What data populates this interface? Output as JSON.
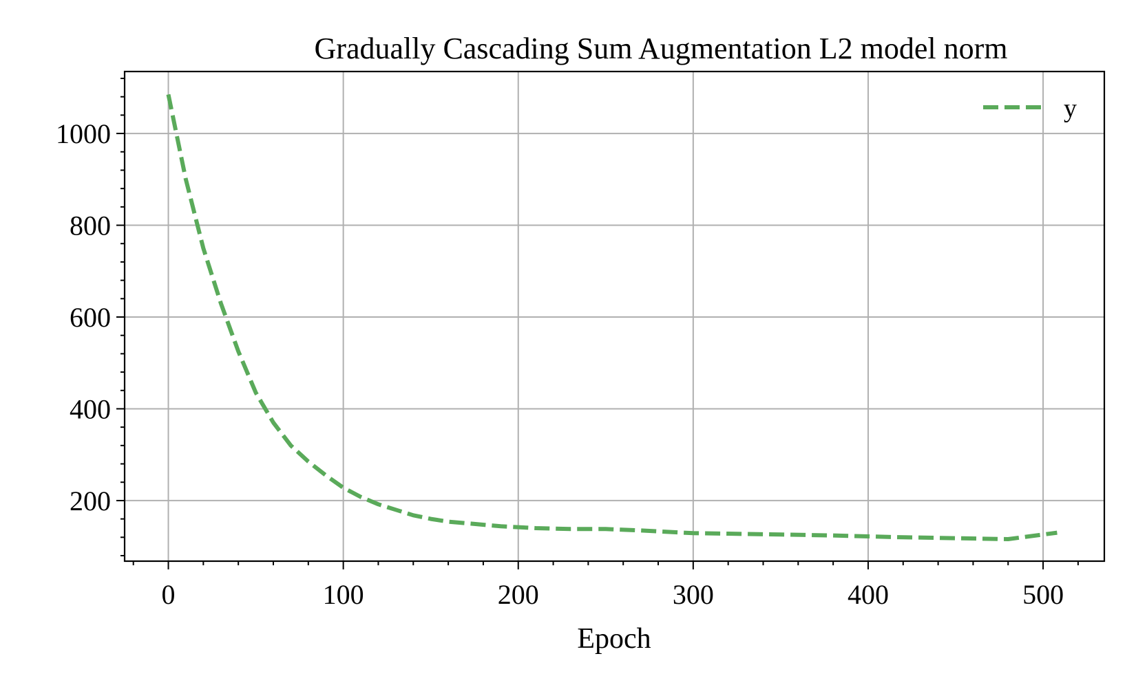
{
  "chart_data": {
    "type": "line",
    "title": "Gradually Cascading Sum Augmentation L2 model norm",
    "xlabel": "Epoch",
    "ylabel": "",
    "xlim": [
      -25,
      535
    ],
    "ylim": [
      68,
      1135
    ],
    "x_ticks": [
      0,
      100,
      200,
      300,
      400,
      500
    ],
    "y_ticks": [
      200,
      400,
      600,
      800,
      1000
    ],
    "x_minor_step": 20,
    "y_minor_step": 40,
    "grid": true,
    "legend": "top-right",
    "series": [
      {
        "name": "y",
        "color": "#5aaa5a",
        "line_style": "dashed",
        "x": [
          0,
          10,
          20,
          30,
          40,
          50,
          60,
          70,
          80,
          90,
          100,
          110,
          120,
          130,
          140,
          150,
          160,
          175,
          190,
          200,
          210,
          230,
          250,
          270,
          290,
          300,
          320,
          350,
          380,
          400,
          420,
          450,
          480,
          508
        ],
        "y": [
          1085,
          900,
          750,
          630,
          525,
          435,
          370,
          320,
          285,
          255,
          228,
          208,
          192,
          180,
          168,
          160,
          154,
          149,
          144,
          142,
          140,
          138,
          138,
          135,
          131,
          129,
          128,
          126,
          124,
          122,
          120,
          118,
          116,
          130
        ]
      }
    ]
  }
}
